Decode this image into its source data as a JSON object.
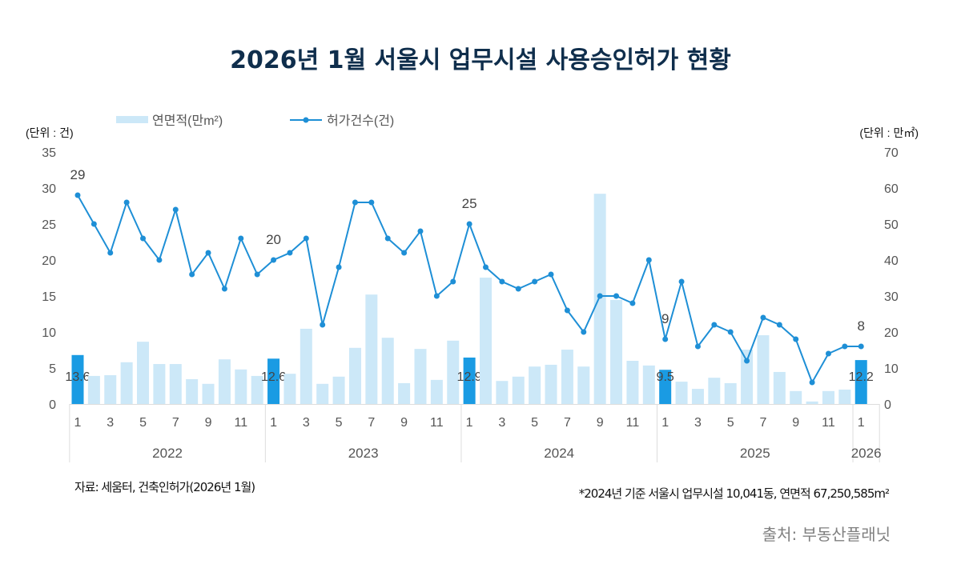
{
  "title": "2026년 1월 서울시 업무시설 사용승인허가 현황",
  "footnote_left": "자료: 세움터, 건축인허가(2026년 1월)",
  "footnote_right": "*2024년 기준 서울시 업무시설 10,041동, 연면적 67,250,585m²",
  "source": "출처: 부동산플래닛",
  "chart_data": {
    "type": "bar+line",
    "left_unit": "(단위 : 건)",
    "right_unit": "(단위 : 만㎡)",
    "left_ylim": [
      0,
      35
    ],
    "right_ylim": [
      0,
      70
    ],
    "left_ticks": [
      0,
      5,
      10,
      15,
      20,
      25,
      30,
      35
    ],
    "right_ticks": [
      0,
      10,
      20,
      30,
      40,
      50,
      60,
      70
    ],
    "legend_position": "top",
    "years": [
      "2022",
      "2023",
      "2024",
      "2025",
      "2026"
    ],
    "month_tick_labels": [
      "1",
      "3",
      "5",
      "7",
      "9",
      "11"
    ],
    "colors": {
      "bar": "#cce8f8",
      "bar_highlight": "#1a9be3",
      "line": "#1e8fd6"
    },
    "series": [
      {
        "name": "연면적(만m²)",
        "type": "bar",
        "axis": "right",
        "values": [
          13.6,
          7.8,
          8.0,
          11.6,
          17.3,
          11.1,
          11.1,
          6.9,
          5.6,
          12.4,
          9.6,
          7.8,
          12.6,
          8.4,
          20.9,
          5.6,
          7.6,
          15.6,
          30.4,
          18.4,
          5.8,
          15.3,
          6.7,
          17.6,
          12.9,
          35.1,
          6.4,
          7.6,
          10.4,
          10.9,
          15.1,
          10.4,
          58.4,
          28.9,
          12.0,
          10.7,
          9.5,
          6.2,
          4.2,
          7.3,
          5.8,
          15.1,
          19.1,
          8.9,
          3.6,
          0.7,
          3.6,
          4.0,
          12.2
        ]
      },
      {
        "name": "허가건수(건)",
        "type": "line",
        "axis": "left",
        "values": [
          29,
          25,
          21,
          28,
          23,
          20,
          27,
          18,
          21,
          16,
          23,
          18,
          20,
          21,
          23,
          11,
          19,
          28,
          28,
          23,
          21,
          24,
          15,
          17,
          25,
          19,
          17,
          16,
          17,
          18,
          13,
          10,
          15,
          15,
          14,
          20,
          9,
          17,
          8,
          11,
          10,
          6,
          12,
          11,
          9,
          3,
          7,
          8,
          8
        ]
      }
    ],
    "labeled_points": {
      "bar": [
        "13.6",
        "12.6",
        "12.9",
        "9.5",
        "12.2"
      ],
      "line": [
        "29",
        "20",
        "25",
        "9",
        "8"
      ]
    }
  }
}
